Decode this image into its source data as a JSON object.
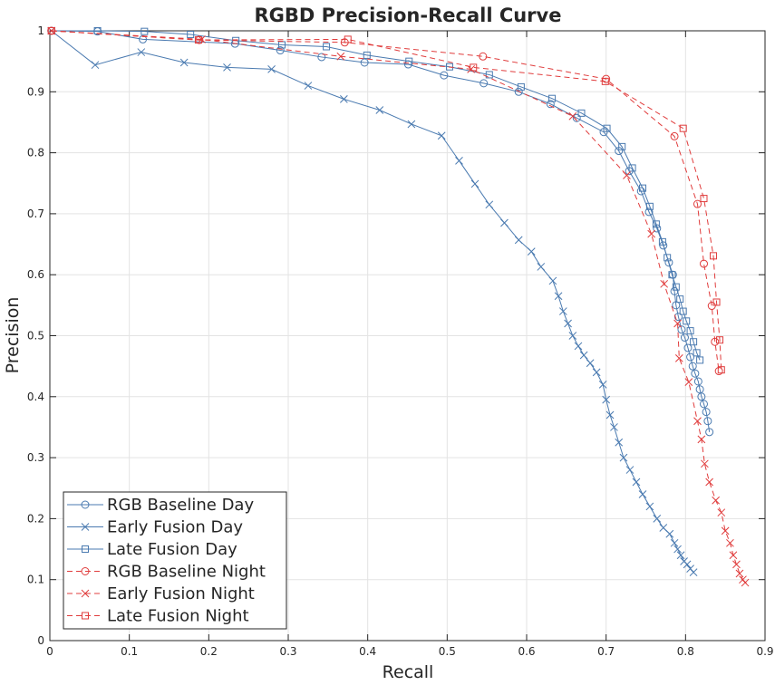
{
  "chart_data": {
    "type": "line",
    "title": "RGBD Precision-Recall Curve",
    "xlabel": "Recall",
    "ylabel": "Precision",
    "xlim": [
      0,
      0.9
    ],
    "ylim": [
      0,
      1
    ],
    "xticks": [
      0,
      0.1,
      0.2,
      0.3,
      0.4,
      0.5,
      0.6,
      0.7,
      0.8,
      0.9
    ],
    "yticks": [
      0,
      0.1,
      0.2,
      0.3,
      0.4,
      0.5,
      0.6,
      0.7,
      0.8,
      0.9,
      1
    ],
    "xtick_labels": [
      "0",
      "0.1",
      "0.2",
      "0.3",
      "0.4",
      "0.5",
      "0.6",
      "0.7",
      "0.8",
      "0.9"
    ],
    "ytick_labels": [
      "0",
      "0.1",
      "0.2",
      "0.3",
      "0.4",
      "0.5",
      "0.6",
      "0.7",
      "0.8",
      "0.9",
      "1"
    ],
    "grid": true,
    "legend_position": "bottom-left",
    "series": [
      {
        "name": "RGB Baseline Day",
        "color": "#4a7ab0",
        "linestyle": "solid",
        "marker": "circle",
        "x": [
          0.002,
          0.06,
          0.117,
          0.233,
          0.29,
          0.342,
          0.396,
          0.451,
          0.496,
          0.546,
          0.59,
          0.63,
          0.663,
          0.697,
          0.716,
          0.729,
          0.744,
          0.754,
          0.764,
          0.772,
          0.779,
          0.784,
          0.786,
          0.788,
          0.791,
          0.795,
          0.799,
          0.803,
          0.806,
          0.809,
          0.812,
          0.816,
          0.818,
          0.82,
          0.823,
          0.826,
          0.828,
          0.83
        ],
        "y": [
          1.0,
          0.999,
          0.986,
          0.979,
          0.968,
          0.957,
          0.948,
          0.945,
          0.927,
          0.914,
          0.9,
          0.88,
          0.857,
          0.834,
          0.803,
          0.77,
          0.737,
          0.703,
          0.676,
          0.648,
          0.62,
          0.6,
          0.573,
          0.55,
          0.531,
          0.51,
          0.497,
          0.48,
          0.465,
          0.45,
          0.438,
          0.425,
          0.412,
          0.4,
          0.388,
          0.375,
          0.36,
          0.342
        ]
      },
      {
        "name": "Early Fusion Day",
        "color": "#4a7ab0",
        "linestyle": "solid",
        "marker": "x",
        "x": [
          0.002,
          0.057,
          0.115,
          0.169,
          0.223,
          0.279,
          0.325,
          0.37,
          0.415,
          0.455,
          0.493,
          0.515,
          0.535,
          0.553,
          0.572,
          0.59,
          0.606,
          0.618,
          0.633,
          0.64,
          0.646,
          0.652,
          0.658,
          0.665,
          0.672,
          0.68,
          0.688,
          0.696,
          0.7,
          0.705,
          0.71,
          0.716,
          0.722,
          0.73,
          0.738,
          0.746,
          0.755,
          0.764,
          0.772,
          0.78,
          0.786,
          0.79,
          0.794,
          0.798,
          0.802,
          0.806,
          0.81
        ],
        "y": [
          1.0,
          0.944,
          0.965,
          0.948,
          0.94,
          0.937,
          0.91,
          0.888,
          0.87,
          0.847,
          0.828,
          0.787,
          0.749,
          0.715,
          0.685,
          0.657,
          0.638,
          0.613,
          0.59,
          0.565,
          0.54,
          0.52,
          0.5,
          0.483,
          0.468,
          0.455,
          0.44,
          0.42,
          0.395,
          0.37,
          0.35,
          0.325,
          0.3,
          0.28,
          0.26,
          0.24,
          0.22,
          0.2,
          0.185,
          0.175,
          0.16,
          0.15,
          0.14,
          0.13,
          0.125,
          0.118,
          0.112
        ]
      },
      {
        "name": "Late Fusion Day",
        "color": "#4a7ab0",
        "linestyle": "solid",
        "marker": "square",
        "x": [
          0.002,
          0.06,
          0.119,
          0.177,
          0.234,
          0.292,
          0.348,
          0.399,
          0.452,
          0.503,
          0.553,
          0.593,
          0.632,
          0.669,
          0.701,
          0.72,
          0.733,
          0.746,
          0.755,
          0.763,
          0.771,
          0.777,
          0.783,
          0.788,
          0.793,
          0.797,
          0.801,
          0.806,
          0.81,
          0.814,
          0.818
        ],
        "y": [
          1.0,
          1.0,
          0.999,
          0.994,
          0.984,
          0.977,
          0.974,
          0.96,
          0.95,
          0.941,
          0.928,
          0.908,
          0.889,
          0.865,
          0.84,
          0.81,
          0.775,
          0.742,
          0.712,
          0.683,
          0.654,
          0.628,
          0.6,
          0.58,
          0.56,
          0.54,
          0.524,
          0.508,
          0.49,
          0.472,
          0.46
        ]
      },
      {
        "name": "RGB Baseline Night",
        "color": "#e03c3c",
        "linestyle": "dashed",
        "marker": "circle",
        "x": [
          0.002,
          0.188,
          0.371,
          0.545,
          0.7,
          0.786,
          0.815,
          0.823,
          0.833,
          0.837,
          0.842
        ],
        "y": [
          1.0,
          0.985,
          0.981,
          0.958,
          0.921,
          0.827,
          0.716,
          0.618,
          0.549,
          0.49,
          0.442
        ]
      },
      {
        "name": "Early Fusion Night",
        "color": "#e03c3c",
        "linestyle": "dashed",
        "marker": "x",
        "x": [
          0.002,
          0.191,
          0.366,
          0.53,
          0.658,
          0.726,
          0.757,
          0.773,
          0.79,
          0.792,
          0.804,
          0.815,
          0.82,
          0.824,
          0.83,
          0.838,
          0.845,
          0.85,
          0.856,
          0.86,
          0.864,
          0.868,
          0.872,
          0.875
        ],
        "y": [
          1.0,
          0.986,
          0.958,
          0.937,
          0.86,
          0.763,
          0.667,
          0.585,
          0.52,
          0.463,
          0.424,
          0.36,
          0.33,
          0.29,
          0.26,
          0.23,
          0.21,
          0.18,
          0.16,
          0.14,
          0.125,
          0.11,
          0.1,
          0.095
        ]
      },
      {
        "name": "Late Fusion Night",
        "color": "#e03c3c",
        "linestyle": "dashed",
        "marker": "square",
        "x": [
          0.002,
          0.187,
          0.375,
          0.533,
          0.699,
          0.797,
          0.823,
          0.835,
          0.839,
          0.843,
          0.845
        ],
        "y": [
          1.0,
          0.985,
          0.986,
          0.94,
          0.917,
          0.84,
          0.725,
          0.631,
          0.555,
          0.493,
          0.444
        ]
      }
    ]
  }
}
